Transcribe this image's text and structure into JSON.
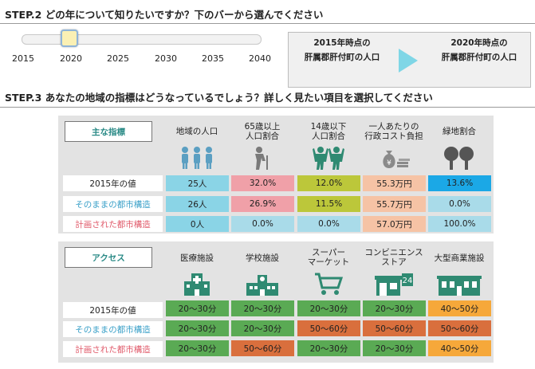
{
  "step2": {
    "title": "STEP.2 どの年について知りたいですか？下のバーから選んでください"
  },
  "slider": {
    "ticks": [
      "2015",
      "2020",
      "2025",
      "2030",
      "2035",
      "2040"
    ],
    "selected": "2020"
  },
  "compare": {
    "left_line1": "2015年時点の",
    "left_line2": "肝属郡肝付町の人口",
    "right_line1": "2020年時点の",
    "right_line2": "肝属郡肝付町の人口"
  },
  "step3": {
    "title": "STEP.3 あなたの地域の指標はどうなっているでしょう？詳しく見たい項目を選択してください"
  },
  "indicators": {
    "category": "主な指標",
    "columns": [
      "地域の人口",
      "65歳以上\n人口割合",
      "14歳以下\n人口割合",
      "一人あたりの\n行政コスト負担",
      "緑地割合"
    ],
    "rows": [
      {
        "label": "2015年の値",
        "label_color": "#222222",
        "values": [
          "25人",
          "32.0%",
          "12.0%",
          "55.3万円",
          "13.6%"
        ]
      },
      {
        "label": "そのままの都市構造",
        "label_color": "#3aa0c8",
        "values": [
          "26人",
          "26.9%",
          "11.5%",
          "55.7万円",
          "0.0%"
        ]
      },
      {
        "label": "計画された都市構造",
        "label_color": "#e05a6a",
        "values": [
          "0人",
          "0.0%",
          "0.0%",
          "57.0万円",
          "100.0%"
        ]
      }
    ]
  },
  "access": {
    "category": "アクセス",
    "columns": [
      "医療施設",
      "学校施設",
      "スーパー\nマーケット",
      "コンビニエンス\nストア",
      "大型商業施設"
    ],
    "rows": [
      {
        "label": "2015年の値",
        "label_color": "#222222",
        "values": [
          "20〜30分",
          "20〜30分",
          "20〜30分",
          "20〜30分",
          "40〜50分"
        ]
      },
      {
        "label": "そのままの都市構造",
        "label_color": "#3aa0c8",
        "values": [
          "20〜30分",
          "20〜30分",
          "50〜60分",
          "50〜60分",
          "50〜60分"
        ]
      },
      {
        "label": "計画された都市構造",
        "label_color": "#e05a6a",
        "values": [
          "20〜30分",
          "50〜60分",
          "20〜30分",
          "20〜30分",
          "40〜50分"
        ]
      }
    ],
    "store_badge": "24"
  },
  "colors": {
    "accent_teal": "#2a8a86",
    "blue": "#8ad4e6",
    "pink": "#f0a0a8",
    "olive": "#bcc73a",
    "peach": "#f6c3a5",
    "sky": "#1ba8e6",
    "green": "#5aaa54",
    "orange": "#f6a83a",
    "rust": "#d96f3d"
  },
  "icons": [
    "people-icon",
    "elderly-icon",
    "children-icon",
    "money-bag-icon",
    "trees-icon",
    "hospital-icon",
    "school-icon",
    "shopping-cart-icon",
    "convenience-store-icon",
    "department-store-icon"
  ]
}
